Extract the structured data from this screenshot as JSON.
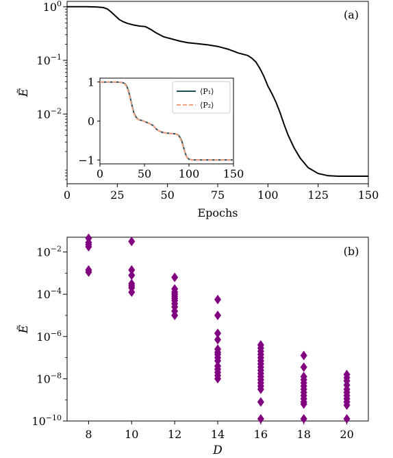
{
  "chart_data": [
    {
      "panel": "(a)",
      "type": "line",
      "xlabel": "Epochs",
      "ylabel": "Ẽ",
      "xlim": [
        0,
        150
      ],
      "ylim_log10": [
        -3.3,
        0.1
      ],
      "yscale": "log",
      "x_ticks": [
        0,
        25,
        50,
        75,
        100,
        125,
        150
      ],
      "y_ticks": [
        {
          "exp": 0,
          "label_base": "10",
          "label_exp": "0"
        },
        {
          "exp": -1,
          "label_base": "10",
          "label_exp": "−1"
        },
        {
          "exp": -2,
          "label_base": "10",
          "label_exp": "−2"
        }
      ],
      "line_color": "#000000",
      "series": [
        {
          "x": [
            0,
            5,
            10,
            15,
            18,
            20,
            22,
            24,
            26,
            28,
            30,
            33,
            36,
            39,
            40,
            42,
            44,
            46,
            48,
            50,
            53,
            56,
            60,
            65,
            70,
            75,
            80,
            83,
            85,
            87,
            89,
            90,
            92,
            94,
            96,
            98,
            100,
            102,
            104,
            106,
            108,
            110,
            113,
            116,
            120,
            125,
            130,
            135,
            140,
            145,
            150
          ],
          "log10_y": [
            0,
            0,
            0,
            -0.005,
            -0.015,
            -0.04,
            -0.1,
            -0.17,
            -0.24,
            -0.28,
            -0.31,
            -0.34,
            -0.36,
            -0.37,
            -0.39,
            -0.43,
            -0.48,
            -0.52,
            -0.56,
            -0.58,
            -0.61,
            -0.64,
            -0.67,
            -0.69,
            -0.71,
            -0.74,
            -0.79,
            -0.83,
            -0.86,
            -0.88,
            -0.9,
            -0.91,
            -0.96,
            -1.03,
            -1.15,
            -1.3,
            -1.48,
            -1.62,
            -1.78,
            -1.97,
            -2.19,
            -2.39,
            -2.63,
            -2.82,
            -3.0,
            -3.11,
            -3.15,
            -3.16,
            -3.16,
            -3.16,
            -3.16
          ]
        }
      ],
      "inset": {
        "type": "line",
        "xlim": [
          0,
          150
        ],
        "ylim": [
          -1.1,
          1.1
        ],
        "x_ticks": [
          0,
          50,
          100,
          150
        ],
        "y_ticks": [
          1,
          0,
          -1
        ],
        "legend_position": "top-right",
        "series": [
          {
            "name": "⟨P₁⟩",
            "color": "#1f4e5a",
            "style": "solid",
            "x": [
              0,
              20,
              25,
              28,
              30,
              32,
              34,
              36,
              38,
              40,
              42,
              44,
              46,
              48,
              50,
              53,
              56,
              60,
              63,
              66,
              70,
              75,
              80,
              85,
              88,
              90,
              92,
              94,
              96,
              98,
              100,
              104,
              110,
              120,
              130,
              140,
              150
            ],
            "y": [
              1,
              1,
              0.99,
              0.96,
              0.9,
              0.78,
              0.6,
              0.4,
              0.22,
              0.12,
              0.06,
              0.03,
              0.02,
              0.01,
              -0.01,
              -0.04,
              -0.07,
              -0.12,
              -0.2,
              -0.25,
              -0.29,
              -0.31,
              -0.32,
              -0.33,
              -0.36,
              -0.42,
              -0.52,
              -0.68,
              -0.84,
              -0.94,
              -0.98,
              -1.0,
              -1.0,
              -1.0,
              -1.0,
              -1.0,
              -1.0
            ]
          },
          {
            "name": "⟨P₂⟩",
            "color": "#f4a07e",
            "style": "dashed",
            "x": [
              0,
              20,
              25,
              28,
              30,
              32,
              34,
              36,
              38,
              40,
              42,
              44,
              46,
              48,
              50,
              53,
              56,
              60,
              63,
              66,
              70,
              75,
              80,
              85,
              88,
              90,
              92,
              94,
              96,
              98,
              100,
              104,
              110,
              120,
              130,
              140,
              150
            ],
            "y": [
              1,
              1,
              0.99,
              0.95,
              0.88,
              0.75,
              0.57,
              0.37,
              0.2,
              0.1,
              0.05,
              0.03,
              0.02,
              0.01,
              -0.01,
              -0.04,
              -0.07,
              -0.12,
              -0.2,
              -0.25,
              -0.29,
              -0.31,
              -0.32,
              -0.33,
              -0.37,
              -0.44,
              -0.55,
              -0.7,
              -0.85,
              -0.95,
              -0.98,
              -1.0,
              -1.0,
              -1.0,
              -1.0,
              -1.0,
              -1.0
            ]
          }
        ]
      }
    },
    {
      "panel": "(b)",
      "type": "scatter",
      "xlabel": "D",
      "ylabel": "Ẽ",
      "xlim": [
        7,
        21
      ],
      "ylim_log10": [
        -10,
        -1.3
      ],
      "yscale": "log",
      "x_ticks": [
        8,
        10,
        12,
        14,
        16,
        18,
        20
      ],
      "y_ticks": [
        {
          "exp": -2,
          "label_base": "10",
          "label_exp": "−2"
        },
        {
          "exp": -4,
          "label_base": "10",
          "label_exp": "−4"
        },
        {
          "exp": -6,
          "label_base": "10",
          "label_exp": "−6"
        },
        {
          "exp": -8,
          "label_base": "10",
          "label_exp": "−8"
        },
        {
          "exp": -10,
          "label_base": "10",
          "label_exp": "−10"
        }
      ],
      "marker": "diamond",
      "marker_color": "#800080",
      "points": [
        {
          "D": 8,
          "log10_E": [
            -1.35,
            -1.55,
            -1.65,
            -1.75,
            -2.85,
            -2.95
          ]
        },
        {
          "D": 10,
          "log10_E": [
            -1.5,
            -2.85,
            -3.1,
            -3.5,
            -3.6,
            -3.7,
            -3.9
          ]
        },
        {
          "D": 12,
          "log10_E": [
            -3.2,
            -3.75,
            -3.9,
            -4.0,
            -4.1,
            -4.2,
            -4.3,
            -4.45,
            -4.6,
            -4.8,
            -5.0
          ]
        },
        {
          "D": 14,
          "log10_E": [
            -4.25,
            -5.0,
            -5.85,
            -6.15,
            -6.6,
            -6.75,
            -6.85,
            -7.0,
            -7.15,
            -7.4,
            -7.55,
            -7.7,
            -7.85,
            -8.0
          ]
        },
        {
          "D": 16,
          "log10_E": [
            -6.4,
            -6.55,
            -6.7,
            -6.85,
            -7.0,
            -7.15,
            -7.3,
            -7.45,
            -7.6,
            -7.75,
            -7.9,
            -8.05,
            -8.2,
            -8.35,
            -8.5,
            -9.1,
            -9.9
          ]
        },
        {
          "D": 18,
          "log10_E": [
            -6.9,
            -7.45,
            -7.9,
            -8.05,
            -8.2,
            -8.35,
            -8.5,
            -8.65,
            -8.8,
            -8.95,
            -9.1,
            -9.2,
            -9.9
          ]
        },
        {
          "D": 20,
          "log10_E": [
            -7.8,
            -7.95,
            -8.1,
            -8.3,
            -8.5,
            -8.65,
            -8.8,
            -8.95,
            -9.1,
            -9.25,
            -9.9
          ]
        }
      ]
    }
  ]
}
